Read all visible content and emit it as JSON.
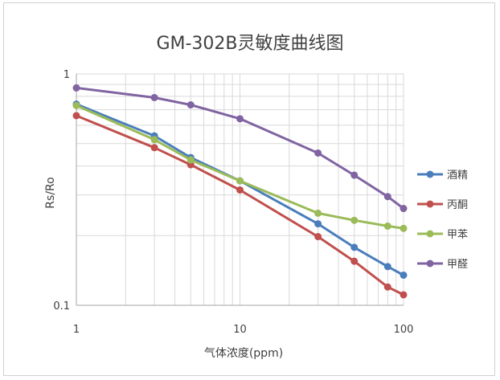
{
  "chart_data": {
    "type": "line",
    "title": "GM-302B灵敏度曲线图",
    "xlabel": "气体浓度(ppm)",
    "ylabel": "Rs/Ro",
    "x_scale": "log",
    "y_scale": "log",
    "xlim": [
      1,
      100
    ],
    "ylim": [
      0.1,
      1
    ],
    "x_ticks": [
      "1",
      "10",
      "100"
    ],
    "y_ticks": [
      "1",
      "0.1"
    ],
    "grid": true,
    "legend_position": "right",
    "x": [
      1,
      3,
      5,
      10,
      30,
      50,
      80,
      100
    ],
    "series": [
      {
        "name": "酒精",
        "color": "#4a7ebb",
        "values": [
          0.74,
          0.54,
          0.435,
          0.345,
          0.225,
          0.178,
          0.147,
          0.135
        ]
      },
      {
        "name": "丙酮",
        "color": "#c0504d",
        "values": [
          0.66,
          0.48,
          0.405,
          0.315,
          0.198,
          0.155,
          0.12,
          0.111
        ]
      },
      {
        "name": "甲苯",
        "color": "#9bbb59",
        "values": [
          0.73,
          0.52,
          0.425,
          0.345,
          0.25,
          0.233,
          0.22,
          0.215
        ]
      },
      {
        "name": "甲醛",
        "color": "#8064a2",
        "values": [
          0.87,
          0.79,
          0.735,
          0.64,
          0.455,
          0.365,
          0.295,
          0.262
        ]
      }
    ]
  }
}
